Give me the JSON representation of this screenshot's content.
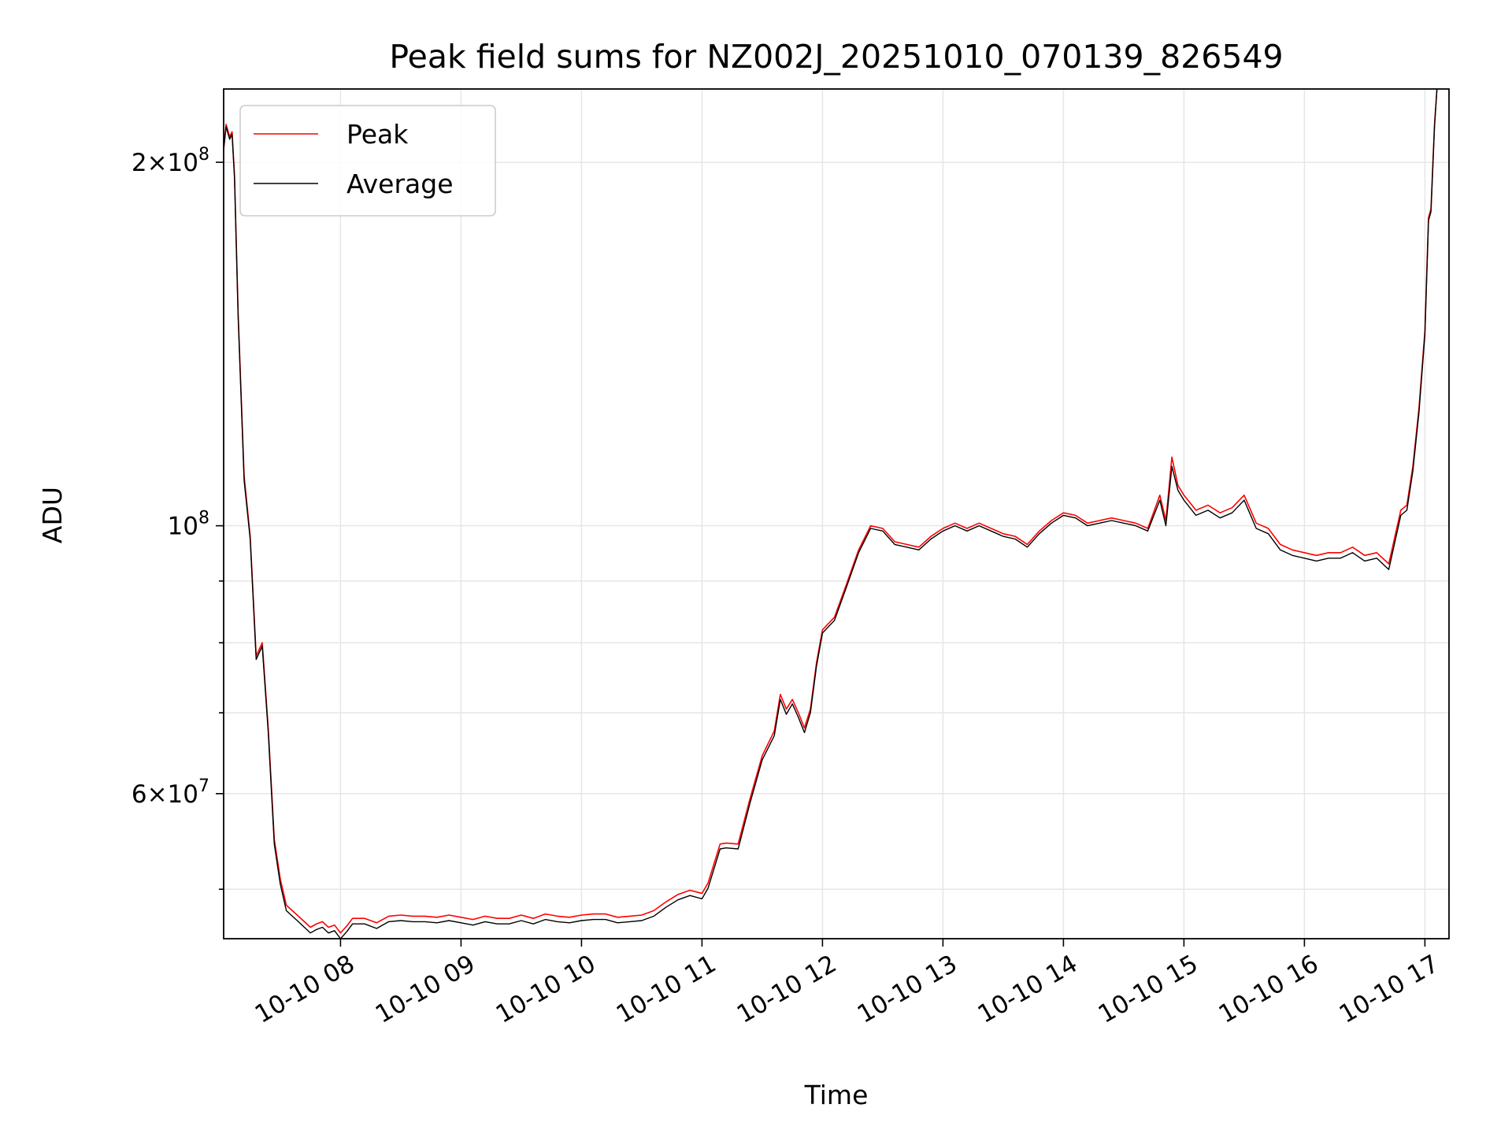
{
  "chart_data": {
    "type": "line",
    "title": "Peak field sums for NZ002J_20251010_070139_826549",
    "xlabel": "Time",
    "ylabel": "ADU",
    "yscale": "log",
    "grid": true,
    "xlim": [
      7.03,
      17.2
    ],
    "ylim": [
      45500000,
      230000000
    ],
    "x_unit": "hour of 2025-10-10",
    "x_ticks": [
      {
        "value": 8,
        "label": "10-10 08"
      },
      {
        "value": 9,
        "label": "10-10 09"
      },
      {
        "value": 10,
        "label": "10-10 10"
      },
      {
        "value": 11,
        "label": "10-10 11"
      },
      {
        "value": 12,
        "label": "10-10 12"
      },
      {
        "value": 13,
        "label": "10-10 13"
      },
      {
        "value": 14,
        "label": "10-10 14"
      },
      {
        "value": 15,
        "label": "10-10 15"
      },
      {
        "value": 16,
        "label": "10-10 16"
      },
      {
        "value": 17,
        "label": "10-10 17"
      }
    ],
    "y_ticks": [
      {
        "value": 60000000,
        "base": "6",
        "exp": "7"
      },
      {
        "value": 100000000,
        "base": "",
        "exp": "8"
      },
      {
        "value": 200000000,
        "base": "2",
        "exp": "8"
      }
    ],
    "y_minor_ticks": [
      50000000,
      70000000,
      80000000,
      90000000
    ],
    "legend": {
      "position": "top-left",
      "entries": [
        "Peak",
        "Average"
      ]
    },
    "series": [
      {
        "name": "Peak",
        "color": "#ff0000",
        "x": [
          7.03,
          7.05,
          7.08,
          7.1,
          7.12,
          7.15,
          7.2,
          7.25,
          7.3,
          7.35,
          7.4,
          7.45,
          7.5,
          7.55,
          7.6,
          7.65,
          7.7,
          7.75,
          7.8,
          7.85,
          7.9,
          7.95,
          8.0,
          8.05,
          8.1,
          8.2,
          8.3,
          8.4,
          8.5,
          8.6,
          8.7,
          8.8,
          8.9,
          9.0,
          9.1,
          9.2,
          9.3,
          9.4,
          9.5,
          9.6,
          9.7,
          9.8,
          9.9,
          10.0,
          10.1,
          10.2,
          10.3,
          10.4,
          10.5,
          10.6,
          10.7,
          10.8,
          10.9,
          11.0,
          11.05,
          11.1,
          11.15,
          11.2,
          11.3,
          11.4,
          11.5,
          11.6,
          11.65,
          11.7,
          11.75,
          11.8,
          11.85,
          11.9,
          11.95,
          12.0,
          12.1,
          12.2,
          12.3,
          12.4,
          12.5,
          12.6,
          12.7,
          12.8,
          12.9,
          13.0,
          13.1,
          13.2,
          13.3,
          13.4,
          13.5,
          13.6,
          13.7,
          13.8,
          13.9,
          14.0,
          14.1,
          14.2,
          14.3,
          14.4,
          14.5,
          14.6,
          14.7,
          14.8,
          14.85,
          14.9,
          14.95,
          15.0,
          15.1,
          15.2,
          15.3,
          15.4,
          15.5,
          15.6,
          15.7,
          15.8,
          15.9,
          16.0,
          16.1,
          16.2,
          16.3,
          16.4,
          16.5,
          16.6,
          16.7,
          16.8,
          16.85,
          16.9,
          16.95,
          17.0,
          17.03,
          17.05,
          17.08,
          17.1
        ],
        "values": [
          205000000,
          215000000,
          210000000,
          212000000,
          195000000,
          150000000,
          110000000,
          98000000,
          78000000,
          80000000,
          68000000,
          55000000,
          51000000,
          48500000,
          48000000,
          47500000,
          47000000,
          46500000,
          46800000,
          47000000,
          46500000,
          46700000,
          46000000,
          46600000,
          47300000,
          47300000,
          46900000,
          47500000,
          47600000,
          47500000,
          47500000,
          47400000,
          47600000,
          47400000,
          47200000,
          47500000,
          47300000,
          47300000,
          47600000,
          47300000,
          47700000,
          47500000,
          47400000,
          47600000,
          47700000,
          47700000,
          47400000,
          47500000,
          47600000,
          48000000,
          48800000,
          49500000,
          49900000,
          49600000,
          50600000,
          52500000,
          54500000,
          54600000,
          54500000,
          59500000,
          64500000,
          67600000,
          72500000,
          70500000,
          71800000,
          70000000,
          68000000,
          70500000,
          77000000,
          82000000,
          84000000,
          89500000,
          95500000,
          100000000,
          99500000,
          97000000,
          96500000,
          96000000,
          98000000,
          99500000,
          100500000,
          99500000,
          100500000,
          99500000,
          98500000,
          98000000,
          96500000,
          99000000,
          101000000,
          102500000,
          102000000,
          100500000,
          101000000,
          101500000,
          101000000,
          100500000,
          99500000,
          106000000,
          101000000,
          114000000,
          108000000,
          106000000,
          103000000,
          104000000,
          102500000,
          103500000,
          106000000,
          100500000,
          99500000,
          96500000,
          95500000,
          95000000,
          94500000,
          95000000,
          95000000,
          96000000,
          94500000,
          95000000,
          93000000,
          103000000,
          104000000,
          112000000,
          125000000,
          145000000,
          180000000,
          183000000,
          215000000,
          230000000
        ]
      },
      {
        "name": "Average",
        "color": "#000000",
        "x": [
          7.03,
          7.05,
          7.08,
          7.1,
          7.12,
          7.15,
          7.2,
          7.25,
          7.3,
          7.35,
          7.4,
          7.45,
          7.5,
          7.55,
          7.6,
          7.65,
          7.7,
          7.75,
          7.8,
          7.85,
          7.9,
          7.95,
          8.0,
          8.05,
          8.1,
          8.2,
          8.3,
          8.4,
          8.5,
          8.6,
          8.7,
          8.8,
          8.9,
          9.0,
          9.1,
          9.2,
          9.3,
          9.4,
          9.5,
          9.6,
          9.7,
          9.8,
          9.9,
          10.0,
          10.1,
          10.2,
          10.3,
          10.4,
          10.5,
          10.6,
          10.7,
          10.8,
          10.9,
          11.0,
          11.05,
          11.1,
          11.15,
          11.2,
          11.3,
          11.4,
          11.5,
          11.6,
          11.65,
          11.7,
          11.75,
          11.8,
          11.85,
          11.9,
          11.95,
          12.0,
          12.1,
          12.2,
          12.3,
          12.4,
          12.5,
          12.6,
          12.7,
          12.8,
          12.9,
          13.0,
          13.1,
          13.2,
          13.3,
          13.4,
          13.5,
          13.6,
          13.7,
          13.8,
          13.9,
          14.0,
          14.1,
          14.2,
          14.3,
          14.4,
          14.5,
          14.6,
          14.7,
          14.8,
          14.85,
          14.9,
          14.95,
          15.0,
          15.1,
          15.2,
          15.3,
          15.4,
          15.5,
          15.6,
          15.7,
          15.8,
          15.9,
          16.0,
          16.1,
          16.2,
          16.3,
          16.4,
          16.5,
          16.6,
          16.7,
          16.8,
          16.85,
          16.9,
          16.95,
          17.0,
          17.03,
          17.05,
          17.08,
          17.1
        ],
        "values": [
          205000000,
          214000000,
          209000000,
          211000000,
          194000000,
          149000000,
          109000000,
          97500000,
          77500000,
          79500000,
          67500000,
          54500000,
          50500000,
          48000000,
          47500000,
          47000000,
          46500000,
          46000000,
          46300000,
          46500000,
          46000000,
          46200000,
          45500000,
          46100000,
          46800000,
          46800000,
          46400000,
          47000000,
          47100000,
          47000000,
          47000000,
          46900000,
          47100000,
          46900000,
          46700000,
          47000000,
          46800000,
          46800000,
          47100000,
          46800000,
          47200000,
          47000000,
          46900000,
          47100000,
          47200000,
          47200000,
          46900000,
          47000000,
          47100000,
          47500000,
          48300000,
          49000000,
          49400000,
          49100000,
          50100000,
          52000000,
          54000000,
          54100000,
          54000000,
          59000000,
          64000000,
          67000000,
          71800000,
          69800000,
          71200000,
          69400000,
          67400000,
          70000000,
          76500000,
          81500000,
          83500000,
          89000000,
          95000000,
          99500000,
          99000000,
          96500000,
          96000000,
          95500000,
          97500000,
          99000000,
          100000000,
          99000000,
          100000000,
          99000000,
          98000000,
          97500000,
          96000000,
          98500000,
          100500000,
          102000000,
          101500000,
          100000000,
          100500000,
          101000000,
          100500000,
          100000000,
          99000000,
          105000000,
          100000000,
          112000000,
          107000000,
          105000000,
          102000000,
          103000000,
          101500000,
          102500000,
          105000000,
          99500000,
          98500000,
          95500000,
          94500000,
          94000000,
          93500000,
          94000000,
          94000000,
          95000000,
          93500000,
          94000000,
          92000000,
          102000000,
          103000000,
          111000000,
          124000000,
          144000000,
          179000000,
          182000000,
          214000000,
          230000000
        ]
      }
    ]
  }
}
